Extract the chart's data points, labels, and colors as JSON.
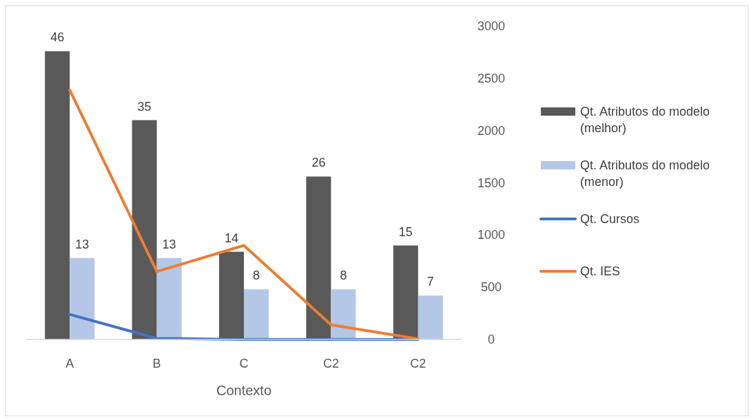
{
  "chart_data": {
    "type": "bar",
    "xlabel": "Contexto",
    "categories": [
      "A",
      "B",
      "C",
      "C2",
      "C2"
    ],
    "series": [
      {
        "name": "Qt. Atributos do modelo (melhor)",
        "color": "#595959",
        "values": [
          46,
          35,
          14,
          26,
          15
        ],
        "value_labels": [
          "46",
          "35",
          "14",
          "26",
          "15"
        ]
      },
      {
        "name": "Qt. Atributos do modelo (menor)",
        "color": "#b4c7e7",
        "values": [
          13,
          13,
          8,
          8,
          7
        ],
        "value_labels": [
          "13",
          "13",
          "8",
          "8",
          "7"
        ]
      },
      {
        "name": "Qt. Cursos",
        "type": "line",
        "axis": "y2",
        "color": "#4472c4",
        "values": [
          240,
          10,
          0,
          0,
          0
        ]
      },
      {
        "name": "Qt. IES",
        "type": "line",
        "axis": "y2",
        "color": "#ed7d31",
        "values": [
          2390,
          650,
          900,
          140,
          5
        ]
      }
    ],
    "y2lim": [
      0,
      3000
    ],
    "y2ticks": [
      0,
      500,
      1000,
      1500,
      2000,
      2500,
      3000
    ],
    "legend": "right",
    "grid": false,
    "marker": "none",
    "line_style": "solid"
  }
}
